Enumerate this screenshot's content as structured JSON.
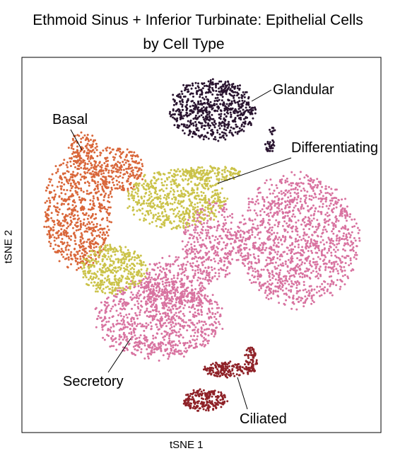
{
  "title_line1": "Ethmoid Sinus + Inferior Turbinate: Epithelial Cells",
  "title_line2": "by Cell Type",
  "chart_data": {
    "type": "scatter",
    "xlabel": "tSNE 1",
    "ylabel": "tSNE 2",
    "axis_ticks": "none",
    "grid": false,
    "legend": "none (direct labels)",
    "clusters": [
      {
        "name": "Glandular",
        "color": "#2a1530"
      },
      {
        "name": "Basal",
        "color": "#d9673a"
      },
      {
        "name": "Differentiating",
        "color": "#cbc34a"
      },
      {
        "name": "Secretory",
        "color": "#d873a0"
      },
      {
        "name": "Ciliated",
        "color": "#8f2228"
      }
    ]
  }
}
